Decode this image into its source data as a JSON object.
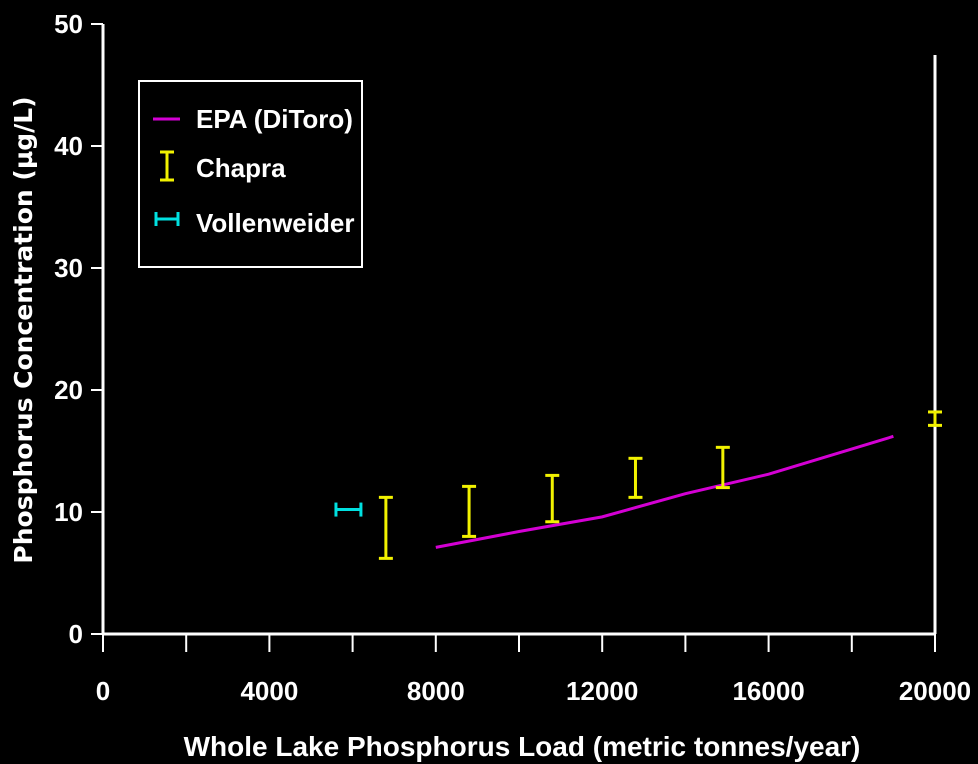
{
  "chart_data": {
    "type": "line",
    "xlabel": "Whole Lake Phosphorus Load (metric tonnes/year)",
    "ylabel": "Phosphorus Concentration (µg/L)",
    "xlim": [
      0,
      20000
    ],
    "ylim": [
      0,
      50
    ],
    "x_ticks": [
      "0",
      "4000",
      "8000",
      "12000",
      "16000",
      "20000"
    ],
    "y_ticks": [
      "0",
      "10",
      "20",
      "30",
      "40",
      "50"
    ],
    "grid": false,
    "legend_position": "top-left",
    "colors": {
      "epa": "#d400d4",
      "chapra": "#f2f200",
      "vollenweider": "#00e0e0"
    },
    "series": [
      {
        "name": "EPA (DiToro)",
        "kind": "line",
        "points": [
          [
            8000,
            7.1
          ],
          [
            10000,
            8.4
          ],
          [
            12000,
            9.6
          ],
          [
            14000,
            11.5
          ],
          [
            16000,
            13.1
          ],
          [
            19000,
            16.2
          ]
        ]
      },
      {
        "name": "Chapra",
        "kind": "vertical-range",
        "points": [
          {
            "x": 6800,
            "low": 6.2,
            "high": 11.2
          },
          {
            "x": 8800,
            "low": 8.0,
            "high": 12.1
          },
          {
            "x": 10800,
            "low": 9.2,
            "high": 13.0
          },
          {
            "x": 12800,
            "low": 11.2,
            "high": 14.4
          },
          {
            "x": 14900,
            "low": 12.0,
            "high": 15.3
          },
          {
            "x": 20000,
            "low": 17.1,
            "high": 18.2
          }
        ]
      },
      {
        "name": "Vollenweider",
        "kind": "horizontal-range",
        "points": [
          {
            "y": 10.2,
            "low": 5600,
            "high": 6200
          }
        ]
      }
    ]
  }
}
